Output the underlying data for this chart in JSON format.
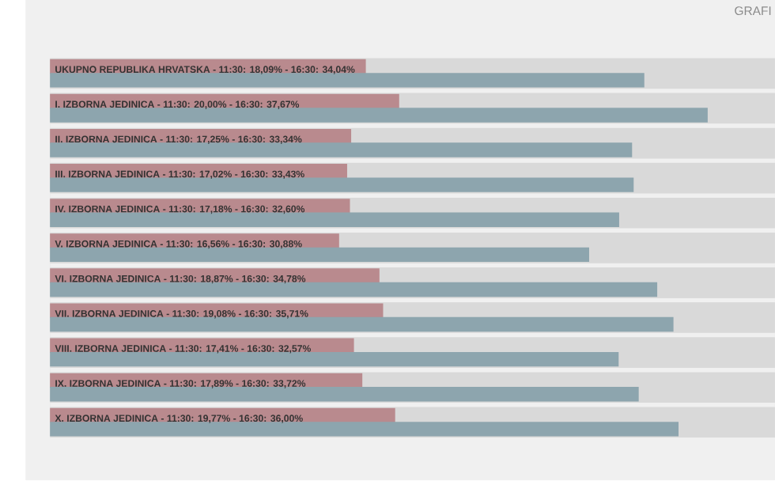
{
  "chart_data": {
    "type": "bar",
    "orientation": "horizontal",
    "categories": [
      "UKUPNO REPUBLIKA HRVATSKA",
      "I. IZBORNA JEDINICA",
      "II. IZBORNA JEDINICA",
      "III. IZBORNA JEDINICA",
      "IV. IZBORNA JEDINICA",
      "V. IZBORNA JEDINICA",
      "VI. IZBORNA JEDINICA",
      "VII. IZBORNA JEDINICA",
      "VIII. IZBORNA JEDINICA",
      "IX. IZBORNA JEDINICA",
      "X. IZBORNA JEDINICA"
    ],
    "series": [
      {
        "name": "- 11:30:",
        "color": "#b98a8e",
        "values": [
          18.09,
          20.0,
          17.25,
          17.02,
          17.18,
          16.56,
          18.87,
          19.08,
          17.41,
          17.89,
          19.77
        ],
        "value_labels": [
          "18,09%",
          "20,00%",
          "17,25%",
          "17,02%",
          "17,18%",
          "16,56%",
          "18,87%",
          "19,08%",
          "17,41%",
          "17,89%",
          "19,77%"
        ]
      },
      {
        "name": "- 16:30:",
        "color": "#8da5ae",
        "values": [
          34.04,
          37.67,
          33.34,
          33.43,
          32.6,
          30.88,
          34.78,
          35.71,
          32.57,
          33.72,
          36.0
        ],
        "value_labels": [
          "34,04%",
          "37,67%",
          "33,34%",
          "33,43%",
          "32,60%",
          "30,88%",
          "34,78%",
          "35,71%",
          "32,57%",
          "33,72%",
          "36,00%"
        ]
      }
    ],
    "annotations": [
      "GRAFI"
    ]
  }
}
